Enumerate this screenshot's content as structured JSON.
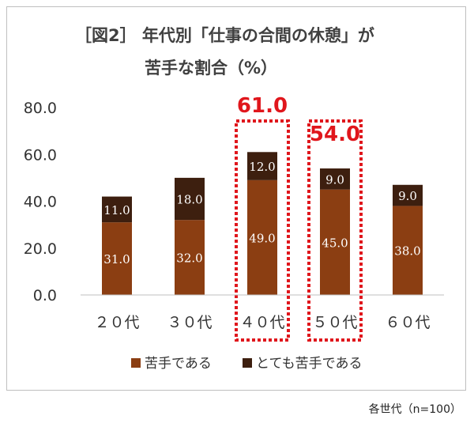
{
  "title_line1": "［図2］ 年代別「仕事の合間の休憩」が",
  "title_line2": "苦手な割合（%）",
  "footnote": "各世代（n=100）",
  "colors": {
    "series1": "#8b3e12",
    "series2": "#3d1f0f",
    "highlight": "#e0161c",
    "axis": "#bfbfbf",
    "grid": "#d9d9d9"
  },
  "chart_data": {
    "type": "bar",
    "stacked": true,
    "categories": [
      "２０代",
      "３０代",
      "４０代",
      "５０代",
      "６０代"
    ],
    "series": [
      {
        "name": "苦手である",
        "values": [
          31.0,
          32.0,
          49.0,
          45.0,
          38.0
        ],
        "labels": [
          "31.0",
          "32.0",
          "49.0",
          "45.0",
          "38.0"
        ]
      },
      {
        "name": "とても苦手である",
        "values": [
          11.0,
          18.0,
          12.0,
          9.0,
          9.0
        ],
        "labels": [
          "11.0",
          "18.0",
          "12.0",
          "9.0",
          "9.0"
        ]
      }
    ],
    "yticks": [
      "0.0",
      "20.0",
      "40.0",
      "60.0",
      "80.0"
    ],
    "ylim": [
      0,
      80
    ],
    "grid": false,
    "legend_position": "bottom",
    "highlights": [
      {
        "category": "４０代",
        "label": "61.0"
      },
      {
        "category": "５０代",
        "label": "54.0"
      }
    ]
  }
}
